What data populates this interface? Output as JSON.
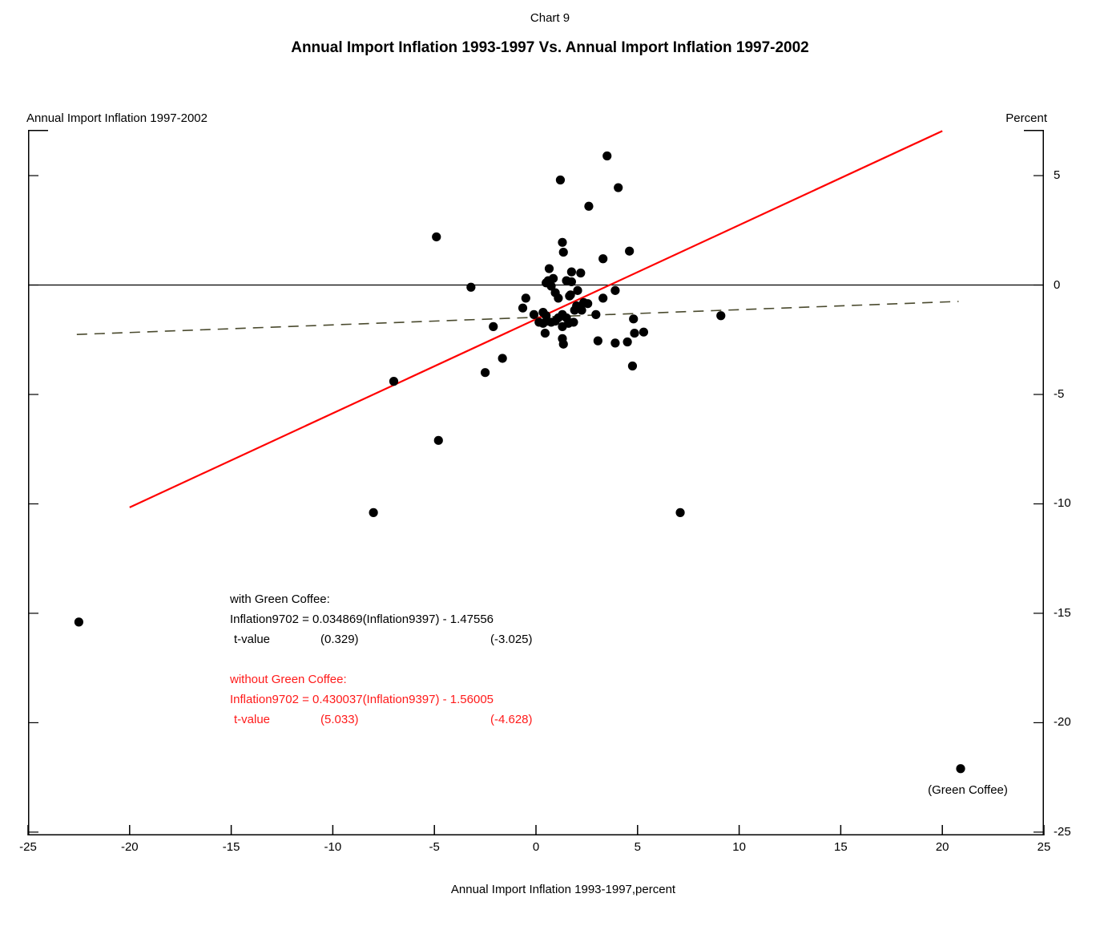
{
  "header": {
    "chart_label": "Chart 9",
    "title": "Annual Import Inflation 1993-1997 Vs. Annual Import Inflation 1997-2002"
  },
  "axes": {
    "left_title": "Annual Import Inflation 1997-2002",
    "right_title": "Percent",
    "x_title": "Annual Import Inflation 1993-1997,percent",
    "x_ticks": [
      -25,
      -20,
      -15,
      -10,
      -5,
      0,
      5,
      10,
      15,
      20,
      25
    ],
    "y_ticks": [
      5,
      0,
      -5,
      -10,
      -15,
      -20,
      -25
    ]
  },
  "annotations": {
    "with_gc": {
      "line1": "with Green Coffee:",
      "line2": "Inflation9702 = 0.034869(Inflation9397) - 1.47556",
      "t_label": "t-value",
      "t_slope": "(0.329)",
      "t_intercept": "(-3.025)"
    },
    "without_gc": {
      "line1": "without Green Coffee:",
      "line2": "Inflation9702 = 0.430037(Inflation9397) - 1.56005",
      "t_label": "t-value",
      "t_slope": "(5.033)",
      "t_intercept": "(-4.628)"
    },
    "outlier_label": "(Green Coffee)"
  },
  "colors": {
    "point": "#000000",
    "axis": "#000000",
    "fit_without_green_coffee": "#ff0000",
    "fit_with_green_coffee": "#4a4a2e",
    "red_text": "#ff1a1a"
  },
  "chart_data": {
    "type": "scatter",
    "title": "Annual Import Inflation 1993-1997 Vs. Annual Import Inflation 1997-2002",
    "xlabel": "Annual Import Inflation 1993-1997,percent",
    "ylabel": "Annual Import Inflation 1997-2002 (Percent)",
    "xlim": [
      -25,
      25
    ],
    "ylim": [
      -25.15,
      7.09
    ],
    "grid": false,
    "points": [
      [
        -22.5,
        -15.4
      ],
      [
        -8.0,
        -10.4
      ],
      [
        7.1,
        -10.4
      ],
      [
        -4.8,
        -7.1
      ],
      [
        -7.0,
        -4.4
      ],
      [
        -2.5,
        -4.0
      ],
      [
        -1.65,
        -3.35
      ],
      [
        4.75,
        -3.7
      ],
      [
        -4.9,
        2.2
      ],
      [
        3.5,
        5.9
      ],
      [
        1.2,
        4.8
      ],
      [
        4.05,
        4.45
      ],
      [
        2.6,
        3.6
      ],
      [
        1.3,
        1.95
      ],
      [
        1.35,
        1.5
      ],
      [
        4.6,
        1.55
      ],
      [
        3.3,
        1.2
      ],
      [
        -3.2,
        -0.1
      ],
      [
        9.1,
        -1.4
      ],
      [
        5.3,
        -2.15
      ],
      [
        4.85,
        -2.2
      ],
      [
        4.8,
        -1.55
      ],
      [
        3.9,
        -0.25
      ],
      [
        3.9,
        -2.65
      ],
      [
        4.5,
        -2.6
      ],
      [
        3.05,
        -2.55
      ],
      [
        2.95,
        -1.35
      ],
      [
        3.3,
        -0.6
      ],
      [
        2.2,
        0.55
      ],
      [
        1.75,
        0.6
      ],
      [
        0.65,
        0.75
      ],
      [
        1.5,
        0.2
      ],
      [
        1.75,
        0.15
      ],
      [
        0.6,
        0.2
      ],
      [
        0.75,
        -0.05
      ],
      [
        0.95,
        -0.35
      ],
      [
        1.1,
        -0.6
      ],
      [
        1.7,
        -0.45
      ],
      [
        2.05,
        -0.25
      ],
      [
        2.0,
        -0.95
      ],
      [
        2.25,
        -1.15
      ],
      [
        2.55,
        -0.85
      ],
      [
        -0.5,
        -0.6
      ],
      [
        -0.65,
        -1.05
      ],
      [
        -0.1,
        -1.35
      ],
      [
        0.35,
        -1.25
      ],
      [
        0.15,
        -1.7
      ],
      [
        0.35,
        -1.75
      ],
      [
        0.55,
        -1.65
      ],
      [
        0.75,
        -1.7
      ],
      [
        0.95,
        -1.65
      ],
      [
        1.1,
        -1.5
      ],
      [
        0.5,
        -1.4
      ],
      [
        1.3,
        -1.35
      ],
      [
        1.5,
        -1.5
      ],
      [
        0.45,
        -2.2
      ],
      [
        1.3,
        -1.9
      ],
      [
        1.6,
        -1.75
      ],
      [
        1.85,
        -1.7
      ],
      [
        1.3,
        -2.45
      ],
      [
        1.35,
        -2.7
      ],
      [
        -2.1,
        -1.9
      ],
      [
        2.35,
        -0.8
      ],
      [
        1.9,
        -1.15
      ],
      [
        1.65,
        -0.5
      ],
      [
        0.5,
        0.1
      ],
      [
        0.85,
        0.3
      ]
    ],
    "labeled_point": {
      "x": 20.9,
      "y": -22.1,
      "label": "(Green Coffee)"
    },
    "lines": [
      {
        "name": "zero-line",
        "style": "solid",
        "color": "#000000",
        "x1": -25,
        "y1": 0,
        "x2": 25,
        "y2": 0
      },
      {
        "name": "fit-with-green-coffee",
        "style": "dashed",
        "color": "#4a4a2e",
        "x1": -22.6,
        "y1": -2.26,
        "x2": 20.8,
        "y2": -0.75,
        "equation": "Inflation9702 = 0.034869(Inflation9397) - 1.47556"
      },
      {
        "name": "fit-without-green-coffee",
        "style": "solid",
        "color": "#ff0000",
        "x1": -20,
        "y1": -10.16,
        "x2": 20,
        "y2": 7.04,
        "equation": "Inflation9702 = 0.430037(Inflation9397) - 1.56005"
      }
    ],
    "legend_position": "none"
  }
}
